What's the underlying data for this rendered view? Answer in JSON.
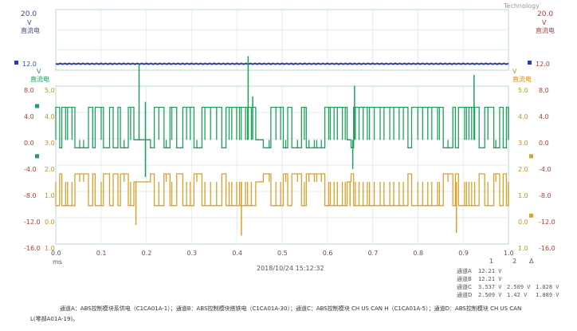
{
  "watermark": "Technology",
  "chart_data": {
    "type": "line",
    "x_unit": "ms",
    "xlim": [
      0.0,
      1.0
    ],
    "x_ticks": [
      "0.0",
      "0.1",
      "0.2",
      "0.3",
      "0.4",
      "0.5",
      "0.6",
      "0.7",
      "0.8",
      "0.9",
      "1.0"
    ],
    "top_panel": {
      "axis_unit": "V",
      "axis_name": "直流电",
      "y_max_label": "20.0",
      "left_marker": "12.0",
      "right_marker": "12.0",
      "series": [
        {
          "name": "ABS控制模块系供电(C1CA01A-1)",
          "channel": "A",
          "color": "#2b3fa6",
          "x": [
            0.0,
            1.0
          ],
          "y": [
            12.21,
            12.21
          ]
        }
      ]
    },
    "bottom_panel": {
      "left_unit": "V",
      "left_name": "直流电",
      "right_unit": "V",
      "right_name": "直流电",
      "left_ticks": [
        "8.0",
        "4.0",
        "0.0",
        "-4.0",
        "-8.0",
        "-12.0",
        "-16.0"
      ],
      "left_ylim": [
        -16.0,
        8.0
      ],
      "inner_ticks": [
        "5.0",
        "4.0",
        "3.0",
        "2.0",
        "1.0",
        "0.0",
        "1.0"
      ],
      "right_ticks_inner": [
        "5.0",
        "4.0",
        "3.0",
        "2.0",
        "1.0",
        "0.0",
        "1.0"
      ],
      "right_ticks_outer": [
        "8.0",
        "4.0",
        "0.0",
        "-4.0",
        "-8.0",
        "-12.0",
        "-16.0"
      ],
      "series": [
        {
          "name": "ABS控制模块CH US CAN H(C1CA01A-5)",
          "channel": "C",
          "color": "#1fa05a",
          "low": 2.5,
          "high": 3.5,
          "bursts": [
            [
              0.0,
              0.17
            ],
            [
              0.2,
              0.44
            ],
            [
              0.45,
              0.64
            ],
            [
              0.64,
              0.87
            ],
            [
              0.87,
              1.0
            ]
          ],
          "quiet": [
            [
              0.17,
              0.2
            ],
            [
              0.44,
              0.45
            ],
            [
              0.64,
              0.65
            ]
          ],
          "spikes": [
            [
              0.184,
              5.4
            ],
            [
              0.198,
              1.2
            ],
            [
              0.198,
              4.0
            ],
            [
              0.425,
              5.7
            ],
            [
              0.435,
              4.2
            ],
            [
              0.66,
              4.6
            ],
            [
              0.656,
              1.5
            ],
            [
              0.924,
              5.0
            ]
          ]
        },
        {
          "name": "ABS控制模块CH US CAN L(C1CA01A-19)",
          "channel": "D",
          "color": "#d9a02c",
          "low": 1.5,
          "high": 2.5,
          "spikes": [
            [
              0.177,
              0.6
            ],
            [
              0.41,
              0.2
            ],
            [
              0.65,
              1.3
            ],
            [
              0.885,
              0.3
            ]
          ]
        }
      ]
    }
  },
  "timestamp": "2018/10/24 15:12:32",
  "cursor_table": {
    "headers": [
      "1",
      "2",
      "Δ"
    ],
    "rows": [
      {
        "label": "通道A",
        "v1": "12.21 V",
        "v2": "",
        "d": ""
      },
      {
        "label": "通道B",
        "v1": "12.21 V",
        "v2": "",
        "d": ""
      },
      {
        "label": "通道C",
        "v1": "3.537 V",
        "v2": "2.509 V",
        "d": "1.028 V"
      },
      {
        "label": "通道D",
        "v1": "2.509 V",
        "v2": "1.42 V",
        "d": "1.089 V"
      }
    ]
  },
  "caption": {
    "line1": "通道A：ABS控制模块系供电（C1CA01A-1）；通道B：ABS控制模块搭铁电（C1CA01A-30）；通道C：ABS控制模块 CH US CAN H（C1CA01A-5）；通道D：ABS控制模块 CH US CAN",
    "line2": "L(零部A01A-19)。"
  },
  "colors": {
    "frame": "#b9d8d2",
    "grid": "#e0eeec",
    "blue": "#2b3fa6",
    "green": "#1fa05a",
    "orange": "#d9a02c",
    "redtick": "#c0392b"
  }
}
